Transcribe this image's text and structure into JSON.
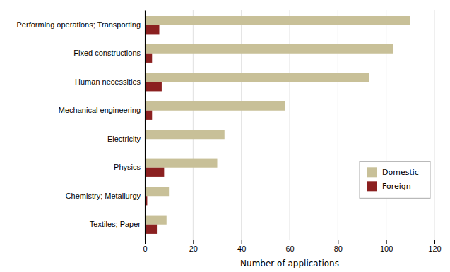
{
  "chart_data": {
    "type": "bar",
    "orientation": "horizontal",
    "categories": [
      "Textiles; Paper",
      "Chemistry; Metallurgy",
      "Physics",
      "Electricity",
      "Mechanical engineering",
      "Human necessities",
      "Fixed constructions",
      "Performing operations; Transporting"
    ],
    "series": [
      {
        "name": "Domestic",
        "color": "#c8c098",
        "values": [
          9,
          10,
          30,
          33,
          58,
          93,
          103,
          110
        ]
      },
      {
        "name": "Foreign",
        "color": "#8b2020",
        "values": [
          5,
          1,
          8,
          0,
          3,
          7,
          3,
          6
        ]
      }
    ],
    "xlabel": "Number of applications",
    "xlim": [
      0,
      120
    ],
    "xticks": [
      0,
      20,
      40,
      60,
      80,
      100,
      120
    ],
    "grid": true,
    "legend": "lower right"
  }
}
